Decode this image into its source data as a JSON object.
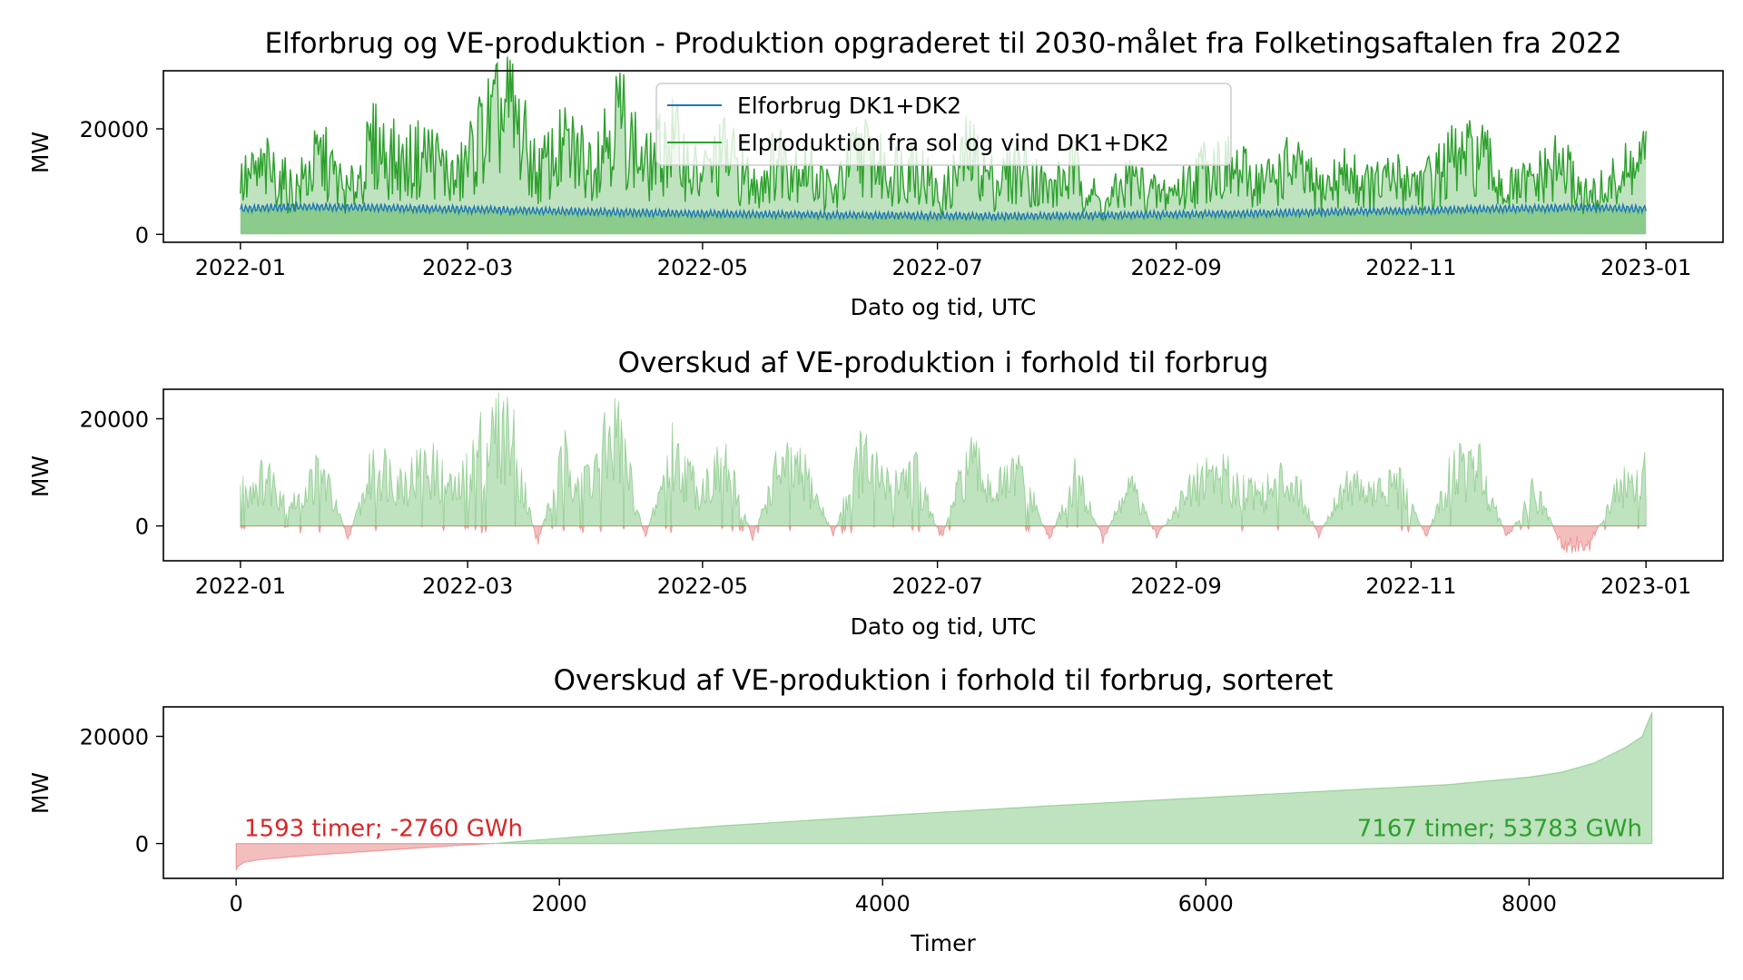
{
  "colors": {
    "consumption": "#1f77b4",
    "production": "#2ca02c",
    "surplus": "#2ca02c",
    "deficit": "#d62728",
    "axis": "#000000"
  },
  "chart_data": [
    {
      "type": "line",
      "title": "Elforbrug og VE-produktion - Produktion opgraderet til 2030-målet fra Folketingsaftalen fra 2022",
      "xlabel": "Dato og tid, UTC",
      "ylabel": "MW",
      "xlim": [
        "2021-12-12",
        "2023-01-21"
      ],
      "ylim": [
        -1500,
        31000
      ],
      "x_ticks": [
        "2022-01",
        "2022-03",
        "2022-05",
        "2022-07",
        "2022-09",
        "2022-11",
        "2023-01"
      ],
      "y_ticks": [
        0,
        20000
      ],
      "legend_position": "upper-center",
      "series": [
        {
          "name": "Elforbrug DK1+DK2",
          "x": [
            "2022-01-01",
            "2022-01-15",
            "2022-02-01",
            "2022-02-15",
            "2022-03-01",
            "2022-03-15",
            "2022-04-01",
            "2022-04-15",
            "2022-05-01",
            "2022-05-15",
            "2022-06-01",
            "2022-06-15",
            "2022-07-01",
            "2022-07-15",
            "2022-08-01",
            "2022-08-15",
            "2022-09-01",
            "2022-09-15",
            "2022-10-01",
            "2022-10-15",
            "2022-11-01",
            "2022-11-15",
            "2022-12-01",
            "2022-12-15",
            "2023-01-01"
          ],
          "values": [
            4800,
            5200,
            5100,
            4900,
            4700,
            4500,
            4300,
            4100,
            3900,
            3800,
            3700,
            3600,
            3500,
            3400,
            3500,
            3600,
            3800,
            3900,
            4100,
            4300,
            4500,
            4700,
            4900,
            5100,
            4800
          ]
        },
        {
          "name": "Elproduktion fra sol og vind DK1+DK2",
          "x": [
            "2022-01-01",
            "2022-01-08",
            "2022-01-15",
            "2022-01-22",
            "2022-01-29",
            "2022-02-05",
            "2022-02-12",
            "2022-02-19",
            "2022-02-26",
            "2022-03-05",
            "2022-03-12",
            "2022-03-19",
            "2022-03-26",
            "2022-04-02",
            "2022-04-09",
            "2022-04-16",
            "2022-04-23",
            "2022-04-30",
            "2022-05-07",
            "2022-05-14",
            "2022-05-21",
            "2022-05-28",
            "2022-06-04",
            "2022-06-11",
            "2022-06-18",
            "2022-06-25",
            "2022-07-02",
            "2022-07-09",
            "2022-07-16",
            "2022-07-23",
            "2022-07-30",
            "2022-08-06",
            "2022-08-13",
            "2022-08-20",
            "2022-08-27",
            "2022-09-03",
            "2022-09-10",
            "2022-09-17",
            "2022-09-24",
            "2022-10-01",
            "2022-10-08",
            "2022-10-15",
            "2022-10-22",
            "2022-10-29",
            "2022-11-05",
            "2022-11-12",
            "2022-11-19",
            "2022-11-26",
            "2022-12-03",
            "2022-12-10",
            "2022-12-17",
            "2022-12-24",
            "2022-12-31"
          ],
          "values": [
            12000,
            15000,
            10000,
            18000,
            9000,
            21000,
            16000,
            19000,
            12000,
            24000,
            29000,
            14000,
            20000,
            17000,
            28000,
            15000,
            22000,
            13000,
            19000,
            11000,
            18000,
            16000,
            9000,
            20000,
            14000,
            17000,
            8000,
            19000,
            12000,
            16000,
            10000,
            15000,
            6000,
            13000,
            9000,
            11000,
            17000,
            14000,
            12000,
            16000,
            10000,
            14000,
            11000,
            13000,
            12000,
            17000,
            18000,
            10000,
            12000,
            16000,
            8000,
            12000,
            17000
          ]
        }
      ]
    },
    {
      "type": "area",
      "title": "Overskud af VE-produktion i forhold til forbrug",
      "xlabel": "Dato og tid, UTC",
      "ylabel": "MW",
      "xlim": [
        "2021-12-12",
        "2023-01-21"
      ],
      "ylim": [
        -6500,
        25500
      ],
      "x_ticks": [
        "2022-01",
        "2022-03",
        "2022-05",
        "2022-07",
        "2022-09",
        "2022-11",
        "2023-01"
      ],
      "y_ticks": [
        0,
        20000
      ],
      "series": [
        {
          "x": [
            "2022-01-01",
            "2022-01-08",
            "2022-01-15",
            "2022-01-22",
            "2022-01-29",
            "2022-02-05",
            "2022-02-12",
            "2022-02-19",
            "2022-02-26",
            "2022-03-05",
            "2022-03-12",
            "2022-03-19",
            "2022-03-26",
            "2022-04-02",
            "2022-04-09",
            "2022-04-16",
            "2022-04-23",
            "2022-04-30",
            "2022-05-07",
            "2022-05-14",
            "2022-05-21",
            "2022-05-28",
            "2022-06-04",
            "2022-06-11",
            "2022-06-18",
            "2022-06-25",
            "2022-07-02",
            "2022-07-09",
            "2022-07-16",
            "2022-07-23",
            "2022-07-30",
            "2022-08-06",
            "2022-08-13",
            "2022-08-20",
            "2022-08-27",
            "2022-09-03",
            "2022-09-10",
            "2022-09-17",
            "2022-09-24",
            "2022-10-01",
            "2022-10-08",
            "2022-10-15",
            "2022-10-22",
            "2022-10-29",
            "2022-11-05",
            "2022-11-12",
            "2022-11-19",
            "2022-11-26",
            "2022-12-03",
            "2022-12-10",
            "2022-12-17",
            "2022-12-24",
            "2022-12-31"
          ],
          "values": [
            9000,
            12000,
            6000,
            14000,
            -3000,
            16000,
            11000,
            15000,
            8000,
            21000,
            24000,
            -4000,
            16000,
            13000,
            24000,
            -3000,
            18000,
            9000,
            15000,
            -2500,
            15000,
            12000,
            -2000,
            17000,
            10000,
            14000,
            -3000,
            16000,
            9000,
            13000,
            -3500,
            12000,
            -3000,
            10000,
            -2500,
            7000,
            14000,
            10000,
            8000,
            13000,
            -2500,
            11000,
            8000,
            10000,
            -2500,
            14000,
            14000,
            -3000,
            9000,
            -4000,
            -5000,
            8000,
            14000
          ]
        }
      ]
    },
    {
      "type": "area",
      "title": "Overskud af VE-produktion i forhold til forbrug, sorteret",
      "xlabel": "Timer",
      "ylabel": "MW",
      "xlim": [
        -450,
        9200
      ],
      "ylim": [
        -6500,
        25500
      ],
      "x_ticks": [
        0,
        2000,
        4000,
        6000,
        8000
      ],
      "y_ticks": [
        0,
        20000
      ],
      "series": [
        {
          "x": [
            0,
            10,
            50,
            150,
            300,
            500,
            800,
            1100,
            1400,
            1593,
            2000,
            3000,
            4000,
            5000,
            6000,
            7000,
            7500,
            8000,
            8200,
            8400,
            8600,
            8700,
            8760
          ],
          "values": [
            -5000,
            -4300,
            -3500,
            -3000,
            -2600,
            -2100,
            -1500,
            -900,
            -300,
            0,
            1000,
            3300,
            5200,
            7000,
            8600,
            10200,
            11000,
            12400,
            13300,
            15000,
            18000,
            20000,
            24500
          ]
        }
      ],
      "annotations": [
        {
          "text": "1593 timer; -2760 GWh",
          "x": 50,
          "y": 1400,
          "color": "#d62728",
          "align": "left"
        },
        {
          "text": "7167 timer; 53783 GWh",
          "x": 8700,
          "y": 1400,
          "color": "#2ca02c",
          "align": "right"
        }
      ]
    }
  ]
}
